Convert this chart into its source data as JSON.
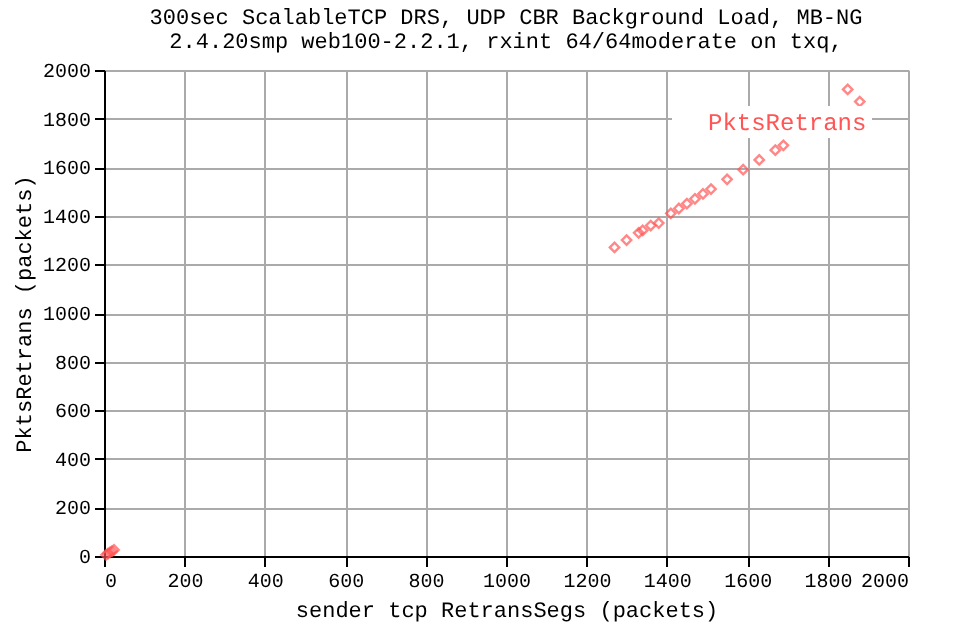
{
  "chart_data": {
    "type": "scatter",
    "title": "300sec ScalableTCP DRS, UDP CBR Background Load, MB-NG",
    "subtitle": "2.4.20smp web100-2.2.1, rxint 64/64moderate on txq,",
    "xlabel": "sender tcp RetransSegs (packets)",
    "ylabel": "PktsRetrans (packets)",
    "series": [
      {
        "name": "PktsRetrans",
        "color": "#ff5555",
        "x": [
          5,
          10,
          15,
          20,
          25,
          1270,
          1300,
          1330,
          1340,
          1360,
          1380,
          1410,
          1430,
          1450,
          1470,
          1490,
          1510,
          1550,
          1590,
          1630,
          1670,
          1690,
          1850,
          1880
        ],
        "values": [
          5,
          10,
          15,
          20,
          25,
          1270,
          1300,
          1330,
          1340,
          1360,
          1370,
          1410,
          1430,
          1450,
          1470,
          1490,
          1510,
          1550,
          1590,
          1630,
          1670,
          1690,
          1920,
          1870
        ]
      }
    ],
    "xlim": [
      0,
      2000
    ],
    "xticks": [
      0,
      200,
      400,
      600,
      800,
      1000,
      1200,
      1400,
      1600,
      1800,
      2000
    ],
    "ylim": [
      0,
      2000
    ],
    "yticks": [
      0,
      200,
      400,
      600,
      800,
      1000,
      1200,
      1400,
      1600,
      1800,
      2000
    ],
    "grid": true,
    "legend": "top right",
    "marker": "diamond"
  }
}
